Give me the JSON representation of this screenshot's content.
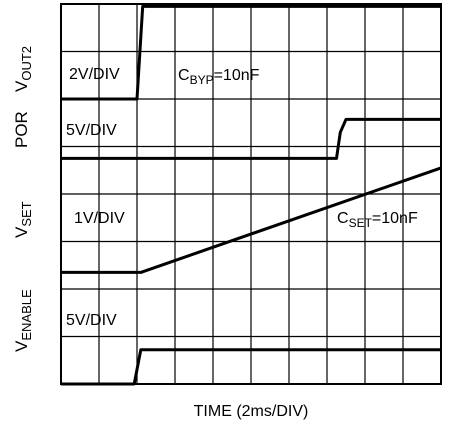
{
  "chart_data": {
    "type": "line",
    "title": "",
    "xlabel": "TIME (2ms/DIV)",
    "grid": true,
    "divisions": {
      "x": 10,
      "y": 8
    },
    "time_per_div_ms": 2,
    "xlim": [
      0,
      20
    ],
    "side_labels": {
      "vout2": {
        "main": "V",
        "sub": "OUT2"
      },
      "por": "POR",
      "vset": {
        "main": "V",
        "sub": "SET"
      },
      "venable": {
        "main": "V",
        "sub": "ENABLE"
      }
    },
    "annotations": {
      "cbyp": {
        "main": "C",
        "sub": "BYP",
        "value": "=10nF"
      },
      "cset": {
        "main": "C",
        "sub": "SET",
        "value": "=10nF"
      }
    },
    "series": [
      {
        "name": "VOUT2",
        "scale": "2V/DIV",
        "baseline_div": 6.0,
        "x_ms": [
          0,
          4.0,
          4.3,
          20
        ],
        "y_div": [
          0,
          0,
          1.95,
          1.95
        ]
      },
      {
        "name": "POR",
        "scale": "5V/DIV",
        "baseline_div": 4.75,
        "x_ms": [
          0,
          14.5,
          14.7,
          15.0,
          20
        ],
        "y_div": [
          0,
          0,
          0.55,
          0.82,
          0.82
        ]
      },
      {
        "name": "VSET",
        "scale": "1V/DIV",
        "baseline_div": 2.35,
        "x_ms": [
          0,
          4.2,
          20
        ],
        "y_div": [
          0,
          0,
          2.2
        ]
      },
      {
        "name": "VENABLE",
        "scale": "5V/DIV",
        "baseline_div": 0,
        "x_ms": [
          0,
          3.85,
          4.2,
          20
        ],
        "y_div": [
          0,
          0,
          0.72,
          0.72
        ]
      }
    ]
  }
}
